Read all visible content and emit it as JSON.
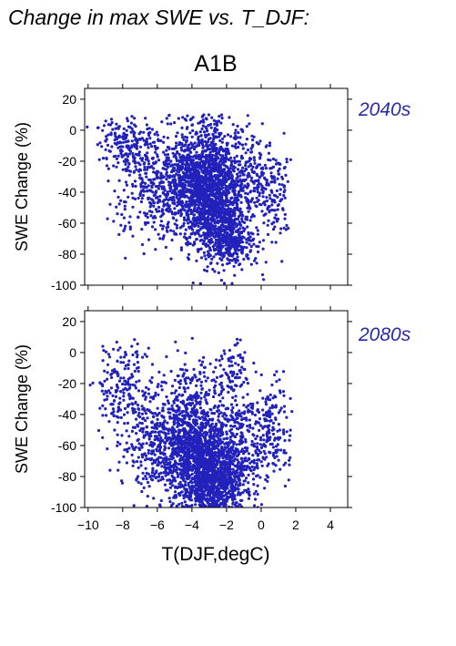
{
  "title": "Change in max SWE vs. T_DJF:",
  "scenario": "A1B",
  "xlabel": "T(DJF,degC)",
  "colors": {
    "points": "#2222bb",
    "period_label": "#2a2aa8",
    "axes": "#000000"
  },
  "chart_data": [
    {
      "type": "scatter",
      "panel": "2040s",
      "ylabel": "SWE Change (%)",
      "xlim": [
        -10.2,
        5
      ],
      "ylim": [
        -100,
        27
      ],
      "xticks": [
        -10,
        -8,
        -6,
        -4,
        -2,
        0,
        2,
        4
      ],
      "yticks": [
        -100,
        -80,
        -60,
        -40,
        -20,
        0,
        20
      ],
      "x_tick_labels_shown": false,
      "point_clouds": [
        {
          "cx": -3.3,
          "cy": -30,
          "sx": 1.0,
          "sy": 17,
          "n": 1100
        },
        {
          "cx": -2.6,
          "cy": -60,
          "sx": 0.9,
          "sy": 13,
          "n": 600
        },
        {
          "cx": -5.5,
          "cy": -35,
          "sx": 1.4,
          "sy": 16,
          "n": 550
        },
        {
          "cx": -7.8,
          "cy": -8,
          "sx": 0.8,
          "sy": 7,
          "n": 170
        },
        {
          "cx": -1.0,
          "cy": -35,
          "sx": 1.0,
          "sy": 17,
          "n": 300
        },
        {
          "cx": 0.7,
          "cy": -45,
          "sx": 0.6,
          "sy": 14,
          "n": 110
        },
        {
          "cx": -1.8,
          "cy": -75,
          "sx": 0.9,
          "sy": 8,
          "n": 180
        }
      ]
    },
    {
      "type": "scatter",
      "panel": "2080s",
      "ylabel": "SWE Change (%)",
      "xlim": [
        -10.2,
        5
      ],
      "ylim": [
        -100,
        27
      ],
      "xticks": [
        -10,
        -8,
        -6,
        -4,
        -2,
        0,
        2,
        4
      ],
      "yticks": [
        -100,
        -80,
        -60,
        -40,
        -20,
        0,
        20
      ],
      "x_tick_labels_shown": true,
      "point_clouds": [
        {
          "cx": -3.3,
          "cy": -70,
          "sx": 1.0,
          "sy": 15,
          "n": 1100
        },
        {
          "cx": -2.4,
          "cy": -85,
          "sx": 0.9,
          "sy": 9,
          "n": 500
        },
        {
          "cx": -5.5,
          "cy": -60,
          "sx": 1.3,
          "sy": 16,
          "n": 550
        },
        {
          "cx": -8.0,
          "cy": -25,
          "sx": 0.8,
          "sy": 14,
          "n": 190
        },
        {
          "cx": -3.8,
          "cy": -35,
          "sx": 1.2,
          "sy": 17,
          "n": 320
        },
        {
          "cx": -1.6,
          "cy": -10,
          "sx": 0.5,
          "sy": 9,
          "n": 70
        },
        {
          "cx": -0.7,
          "cy": -55,
          "sx": 1.1,
          "sy": 17,
          "n": 250
        },
        {
          "cx": 0.8,
          "cy": -50,
          "sx": 0.5,
          "sy": 16,
          "n": 90
        }
      ]
    }
  ]
}
